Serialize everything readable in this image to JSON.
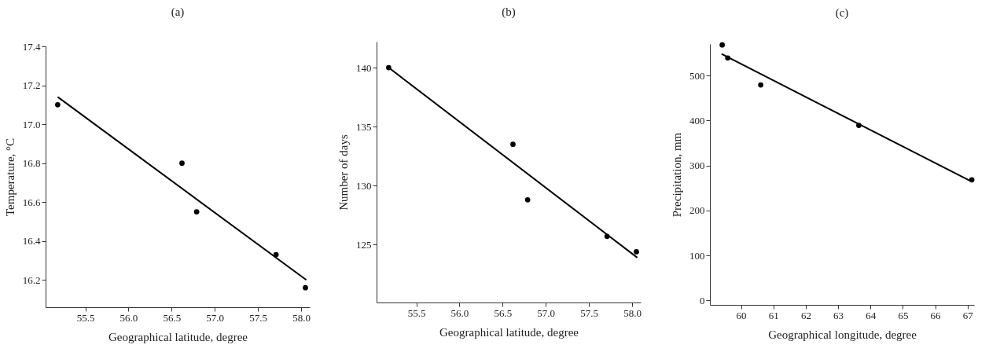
{
  "chart_data": [
    {
      "type": "scatter",
      "title": "(a)",
      "xlabel": "Geographical latitude, degree",
      "ylabel": "Temperature, °C",
      "line_style": "solid",
      "xlim": [
        55.04,
        58.1
      ],
      "ylim": [
        16.06,
        17.4
      ],
      "xticks": [
        55.5,
        {
          "value": 56,
          "label": "56.0"
        },
        56.5,
        {
          "value": 57,
          "label": "57.0"
        },
        57.5,
        {
          "value": 58,
          "label": "58.0"
        }
      ],
      "yticks": [
        16.2,
        16.4,
        16.6,
        16.8,
        {
          "value": 17,
          "label": "17.0"
        },
        17.2,
        17.4
      ],
      "series": [
        {
          "color": "#000000",
          "marker": "circle",
          "x": [
            55.18,
            56.62,
            56.79,
            57.71,
            58.05
          ],
          "values": [
            17.1,
            16.8,
            16.55,
            16.33,
            16.16
          ]
        },
        {
          "type": "line",
          "color": "#000000",
          "x": [
            55.18,
            58.06
          ],
          "values": [
            17.14,
            16.2
          ]
        }
      ]
    },
    {
      "type": "scatter",
      "title": "(b)",
      "xlabel": "Geographical latitude, degree",
      "ylabel": "Number of days",
      "line_style": "solid",
      "xlim": [
        55.04,
        58.1
      ],
      "ylim": [
        120.1,
        142.2
      ],
      "xticks": [
        55.5,
        {
          "value": 56,
          "label": "56.0"
        },
        56.5,
        {
          "value": 57,
          "label": "57.0"
        },
        57.5,
        {
          "value": 58,
          "label": "58.0"
        }
      ],
      "yticks": [
        125,
        130,
        135,
        140
      ],
      "series": [
        {
          "color": "#000000",
          "marker": "circle",
          "x": [
            55.18,
            56.62,
            56.79,
            57.71,
            58.05
          ],
          "values": [
            140.0,
            133.5,
            128.8,
            125.7,
            124.4
          ]
        },
        {
          "type": "line",
          "color": "#000000",
          "x": [
            55.18,
            58.06
          ],
          "values": [
            140.0,
            123.9
          ]
        }
      ]
    },
    {
      "type": "scatter",
      "title": "(c)",
      "xlabel": "Geographical longitude, degree",
      "ylabel": "Precipitation, mm",
      "line_style": "solid",
      "xlim": [
        59.04,
        67.2
      ],
      "ylim": [
        -10,
        570
      ],
      "xticks": [
        60,
        61,
        62,
        63,
        64,
        65,
        66,
        67
      ],
      "yticks": [
        0,
        100,
        200,
        300,
        400,
        500
      ],
      "series": [
        {
          "color": "#000000",
          "marker": "circle",
          "x": [
            59.42,
            59.59,
            60.61,
            63.64,
            67.13
          ],
          "values": [
            568,
            539,
            479,
            389,
            268
          ]
        },
        {
          "type": "line",
          "color": "#000000",
          "x": [
            59.4,
            67.15
          ],
          "values": [
            548,
            263
          ]
        }
      ]
    }
  ]
}
